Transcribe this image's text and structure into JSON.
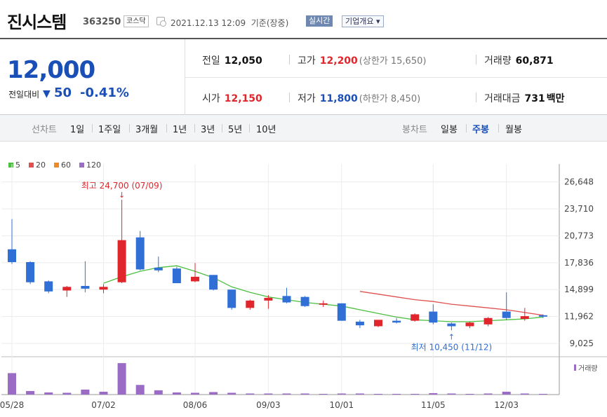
{
  "header": {
    "company": "진시스템",
    "code": "363250",
    "market": "코스닥",
    "datetime": "2021.12.13 12:09",
    "basis": "기준(장중)",
    "live_label": "실시간",
    "overview_label": "기업개요"
  },
  "quote": {
    "price": "12,000",
    "change_label": "전일대비",
    "change_arrow": "▼",
    "change_value": "50",
    "change_pct": "-0.41%",
    "prev_close_label": "전일",
    "prev_close": "12,050",
    "high_label": "고가",
    "high": "12,200",
    "upper_limit": "(상한가 15,650)",
    "volume_label": "거래량",
    "volume": "60,871",
    "open_label": "시가",
    "open": "12,150",
    "low_label": "저가",
    "low": "11,800",
    "lower_limit": "(하한가 8,450)",
    "amount_label": "거래대금",
    "amount": "731",
    "amount_unit": "백만"
  },
  "periods": {
    "line_label": "선차트",
    "line_items": [
      "1일",
      "1주일",
      "3개월",
      "1년",
      "3년",
      "5년",
      "10년"
    ],
    "candle_label": "봉차트",
    "candle_items": [
      "일봉",
      "주봉",
      "월봉"
    ],
    "candle_selected": "주봉"
  },
  "colors": {
    "up": "#e0262c",
    "down": "#2f6fd6",
    "ma5": "#4cbf3f",
    "ma20": "#e05050",
    "ma60": "#f08a26",
    "ma120": "#9a6cc4",
    "volume": "#9a6cc4"
  },
  "chart_data": {
    "type": "candlestick",
    "legend": [
      {
        "name": "5",
        "color": "#4cbf3f"
      },
      {
        "name": "20",
        "color": "#e05050"
      },
      {
        "name": "60",
        "color": "#f08a26"
      },
      {
        "name": "120",
        "color": "#9a6cc4"
      }
    ],
    "y_ticks": [
      "26,648",
      "23,710",
      "20,773",
      "17,836",
      "14,899",
      "11,962",
      "9,025"
    ],
    "ylim": [
      7800,
      28000
    ],
    "x_tick_labels": [
      {
        "label": "05/28",
        "index": 0
      },
      {
        "label": "07/02",
        "index": 5
      },
      {
        "label": "08/06",
        "index": 10
      },
      {
        "label": "09/03",
        "index": 14
      },
      {
        "label": "10/01",
        "index": 18
      },
      {
        "label": "11/05",
        "index": 23
      },
      {
        "label": "12/03",
        "index": 27
      }
    ],
    "annotations": [
      {
        "text": "최고 24,700 (07/09)",
        "index": 6,
        "value": 24700,
        "kind": "high"
      },
      {
        "text": "최저 10,450 (11/12)",
        "index": 24,
        "value": 10450,
        "kind": "low"
      }
    ],
    "volume_label": "거래량",
    "candles": [
      {
        "o": 19300,
        "h": 22600,
        "l": 17700,
        "c": 17900,
        "v": 0.6
      },
      {
        "o": 17900,
        "h": 18000,
        "l": 15500,
        "c": 15700,
        "v": 0.1
      },
      {
        "o": 15800,
        "h": 15900,
        "l": 14500,
        "c": 14700,
        "v": 0.06
      },
      {
        "o": 14800,
        "h": 15300,
        "l": 14100,
        "c": 15200,
        "v": 0.05
      },
      {
        "o": 15300,
        "h": 18000,
        "l": 14600,
        "c": 15000,
        "v": 0.14
      },
      {
        "o": 14900,
        "h": 15500,
        "l": 14500,
        "c": 15200,
        "v": 0.08
      },
      {
        "o": 15700,
        "h": 24700,
        "l": 15600,
        "c": 20300,
        "v": 0.88
      },
      {
        "o": 20600,
        "h": 21300,
        "l": 17000,
        "c": 17100,
        "v": 0.27
      },
      {
        "o": 17300,
        "h": 18500,
        "l": 16800,
        "c": 17000,
        "v": 0.12
      },
      {
        "o": 17200,
        "h": 17400,
        "l": 15600,
        "c": 15600,
        "v": 0.06
      },
      {
        "o": 15800,
        "h": 17800,
        "l": 15700,
        "c": 16300,
        "v": 0.05
      },
      {
        "o": 16500,
        "h": 16500,
        "l": 14800,
        "c": 14900,
        "v": 0.07
      },
      {
        "o": 14900,
        "h": 14900,
        "l": 12700,
        "c": 12900,
        "v": 0.05
      },
      {
        "o": 12900,
        "h": 13800,
        "l": 12700,
        "c": 13700,
        "v": 0.03
      },
      {
        "o": 13700,
        "h": 14300,
        "l": 12800,
        "c": 14000,
        "v": 0.03
      },
      {
        "o": 14200,
        "h": 15100,
        "l": 13400,
        "c": 13500,
        "v": 0.03
      },
      {
        "o": 14100,
        "h": 14200,
        "l": 13000,
        "c": 13100,
        "v": 0.03
      },
      {
        "o": 13300,
        "h": 13700,
        "l": 13000,
        "c": 13400,
        "v": 0.02
      },
      {
        "o": 13400,
        "h": 13400,
        "l": 11500,
        "c": 11500,
        "v": 0.03
      },
      {
        "o": 11400,
        "h": 11600,
        "l": 10700,
        "c": 11000,
        "v": 0.03
      },
      {
        "o": 10900,
        "h": 11600,
        "l": 10800,
        "c": 11600,
        "v": 0.02
      },
      {
        "o": 11500,
        "h": 11800,
        "l": 11200,
        "c": 11300,
        "v": 0.02
      },
      {
        "o": 11500,
        "h": 12300,
        "l": 11400,
        "c": 12200,
        "v": 0.02
      },
      {
        "o": 12500,
        "h": 13300,
        "l": 11100,
        "c": 11300,
        "v": 0.04
      },
      {
        "o": 11200,
        "h": 11300,
        "l": 10450,
        "c": 10900,
        "v": 0.03
      },
      {
        "o": 10900,
        "h": 11400,
        "l": 10700,
        "c": 11300,
        "v": 0.02
      },
      {
        "o": 11100,
        "h": 11900,
        "l": 10900,
        "c": 11800,
        "v": 0.03
      },
      {
        "o": 12500,
        "h": 14600,
        "l": 11600,
        "c": 11800,
        "v": 0.08
      },
      {
        "o": 11700,
        "h": 12900,
        "l": 11500,
        "c": 12000,
        "v": 0.03
      },
      {
        "o": 12100,
        "h": 12200,
        "l": 11800,
        "c": 12000,
        "v": 0.02
      }
    ],
    "ma5": [
      null,
      null,
      null,
      null,
      null,
      15600,
      16300,
      16900,
      17300,
      17500,
      16900,
      16200,
      15200,
      14600,
      14100,
      13800,
      13500,
      13300,
      13100,
      12700,
      12300,
      11900,
      11600,
      11500,
      11400,
      11400,
      11500,
      11600,
      11700,
      11900
    ],
    "ma20": [
      null,
      null,
      null,
      null,
      null,
      null,
      null,
      null,
      null,
      null,
      null,
      null,
      null,
      null,
      null,
      null,
      null,
      null,
      null,
      14700,
      14400,
      14100,
      13800,
      13600,
      13300,
      13100,
      12900,
      12700,
      12400,
      12100
    ]
  }
}
